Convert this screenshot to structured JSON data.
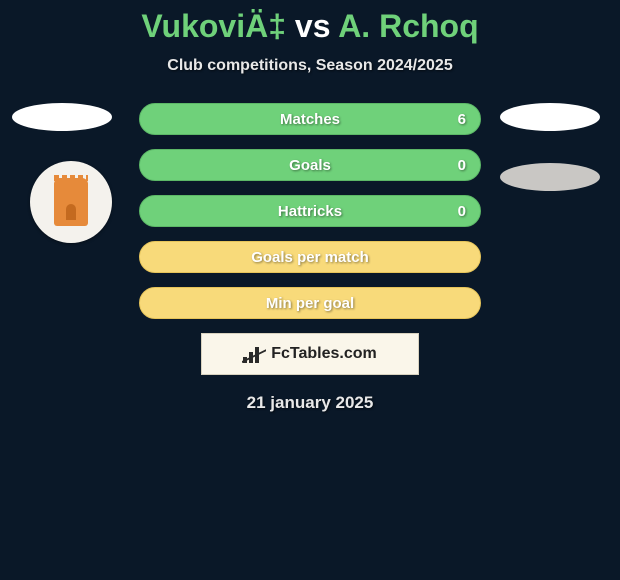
{
  "title": {
    "player1": "VukoviÄ‡",
    "vs": "vs",
    "player2": "A. Rchoq"
  },
  "subtitle": "Club competitions, Season 2024/2025",
  "colors": {
    "green": "#6fd17a",
    "yellow": "#f8da7a",
    "background": "#0a1828",
    "banner_bg": "#faf6ea",
    "text_light": "#e8e8e8"
  },
  "stats": [
    {
      "label": "Matches",
      "value": "6",
      "color": "green"
    },
    {
      "label": "Goals",
      "value": "0",
      "color": "green"
    },
    {
      "label": "Hattricks",
      "value": "0",
      "color": "green"
    },
    {
      "label": "Goals per match",
      "value": "",
      "color": "yellow"
    },
    {
      "label": "Min per goal",
      "value": "",
      "color": "yellow"
    }
  ],
  "side_shapes": {
    "left_top": {
      "color": "white"
    },
    "right_top": {
      "color": "white"
    },
    "right_mid": {
      "color": "grey"
    }
  },
  "club_logo": {
    "name": "ajman-club-crest"
  },
  "banner": {
    "brand": "FcTables.com"
  },
  "date": "21 january 2025"
}
